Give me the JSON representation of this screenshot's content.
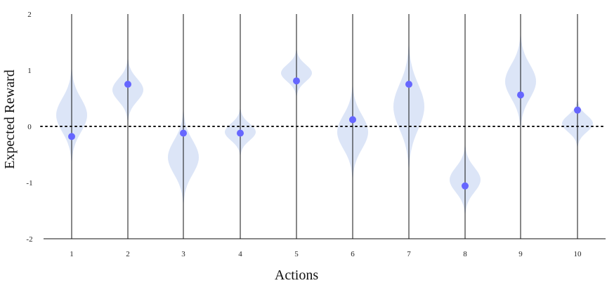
{
  "chart_data": {
    "type": "violin",
    "title": "",
    "xlabel": "Actions",
    "ylabel": "Expected Reward",
    "ylim": [
      -2,
      2
    ],
    "yticks": [
      -2,
      -1,
      0,
      1,
      2
    ],
    "categories": [
      "1",
      "2",
      "3",
      "4",
      "5",
      "6",
      "7",
      "8",
      "9",
      "10"
    ],
    "reference_line": {
      "y": 0,
      "style": "dotted"
    },
    "grid": false,
    "colors": {
      "violin": "#dce5f7",
      "point": "#6666ff",
      "axis": "#000000"
    },
    "violins": [
      {
        "action": "1",
        "center": 0.2,
        "spread": 0.3
      },
      {
        "action": "2",
        "center": 0.65,
        "spread": 0.2
      },
      {
        "action": "3",
        "center": -0.55,
        "spread": 0.3
      },
      {
        "action": "4",
        "center": -0.1,
        "spread": 0.15
      },
      {
        "action": "5",
        "center": 0.95,
        "spread": 0.15
      },
      {
        "action": "6",
        "center": -0.1,
        "spread": 0.3
      },
      {
        "action": "7",
        "center": 0.35,
        "spread": 0.4
      },
      {
        "action": "8",
        "center": -0.95,
        "spread": 0.22
      },
      {
        "action": "9",
        "center": 0.8,
        "spread": 0.3
      },
      {
        "action": "10",
        "center": 0.05,
        "spread": 0.15
      }
    ],
    "points": [
      {
        "action": "1",
        "y": -0.18
      },
      {
        "action": "2",
        "y": 0.75
      },
      {
        "action": "3",
        "y": -0.12
      },
      {
        "action": "4",
        "y": -0.12
      },
      {
        "action": "5",
        "y": 0.81
      },
      {
        "action": "6",
        "y": 0.12
      },
      {
        "action": "7",
        "y": 0.75
      },
      {
        "action": "8",
        "y": -1.06
      },
      {
        "action": "9",
        "y": 0.56
      },
      {
        "action": "10",
        "y": 0.29
      }
    ]
  }
}
